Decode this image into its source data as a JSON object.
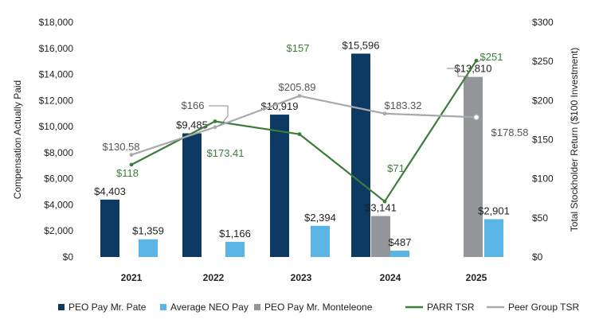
{
  "chart_data": {
    "type": "bar",
    "categories": [
      "2021",
      "2022",
      "2023",
      "2024",
      "2025"
    ],
    "y_left": {
      "label": "Compensation Actually Paid",
      "ylim": [
        0,
        18000
      ],
      "ticks": [
        0,
        2000,
        4000,
        6000,
        8000,
        10000,
        12000,
        14000,
        16000,
        18000
      ],
      "tick_labels": [
        "$0",
        "$2,000",
        "$4,000",
        "$6,000",
        "$8,000",
        "$10,000",
        "$12,000",
        "$14,000",
        "$16,000",
        "$18,000"
      ]
    },
    "y_right": {
      "label": "Total Stockholder Return ($100 Investment)",
      "ylim": [
        0,
        300
      ],
      "ticks": [
        0,
        50,
        100,
        150,
        200,
        250,
        300
      ],
      "tick_labels": [
        "$0",
        "$50",
        "$100",
        "$150",
        "$200",
        "$250",
        "$300"
      ]
    },
    "bar_series": [
      {
        "name": "PEO Pay Mr. Pate",
        "color": "#0d3a63",
        "values": [
          4403,
          9485,
          10919,
          15596,
          null
        ],
        "labels": [
          "$4,403",
          "$9,485",
          "$10,919",
          "$15,596",
          ""
        ]
      },
      {
        "name": "PEO Pay Mr. Monteleone",
        "color": "#939598",
        "values": [
          null,
          null,
          null,
          3141,
          13810
        ],
        "labels": [
          "",
          "",
          "",
          "$3,141",
          "$13,810"
        ]
      },
      {
        "name": "Average NEO Pay",
        "color": "#5ab4e5",
        "values": [
          1359,
          1166,
          2394,
          487,
          2901
        ],
        "labels": [
          "$1,359",
          "$1,166",
          "$2,394",
          "$487",
          "$2,901"
        ]
      }
    ],
    "line_series": [
      {
        "name": "PARR TSR",
        "color": "#3d7d3a",
        "values": [
          118,
          173.41,
          157,
          71,
          251
        ],
        "labels": [
          "$118",
          "$173.41",
          "$157",
          "$71",
          "$251"
        ]
      },
      {
        "name": "Peer Group TSR",
        "color": "#a7a9ac",
        "values": [
          130.58,
          166,
          205.89,
          183.32,
          178.58
        ],
        "labels": [
          "$130.58",
          "$166",
          "$205.89",
          "$183.32",
          "$178.58"
        ]
      }
    ],
    "legend": {
      "position": "bottom",
      "items": [
        "PEO Pay Mr. Pate",
        "Average NEO Pay",
        "PEO Pay Mr. Monteleone",
        "PARR TSR",
        "Peer Group TSR"
      ]
    },
    "grid": false
  }
}
